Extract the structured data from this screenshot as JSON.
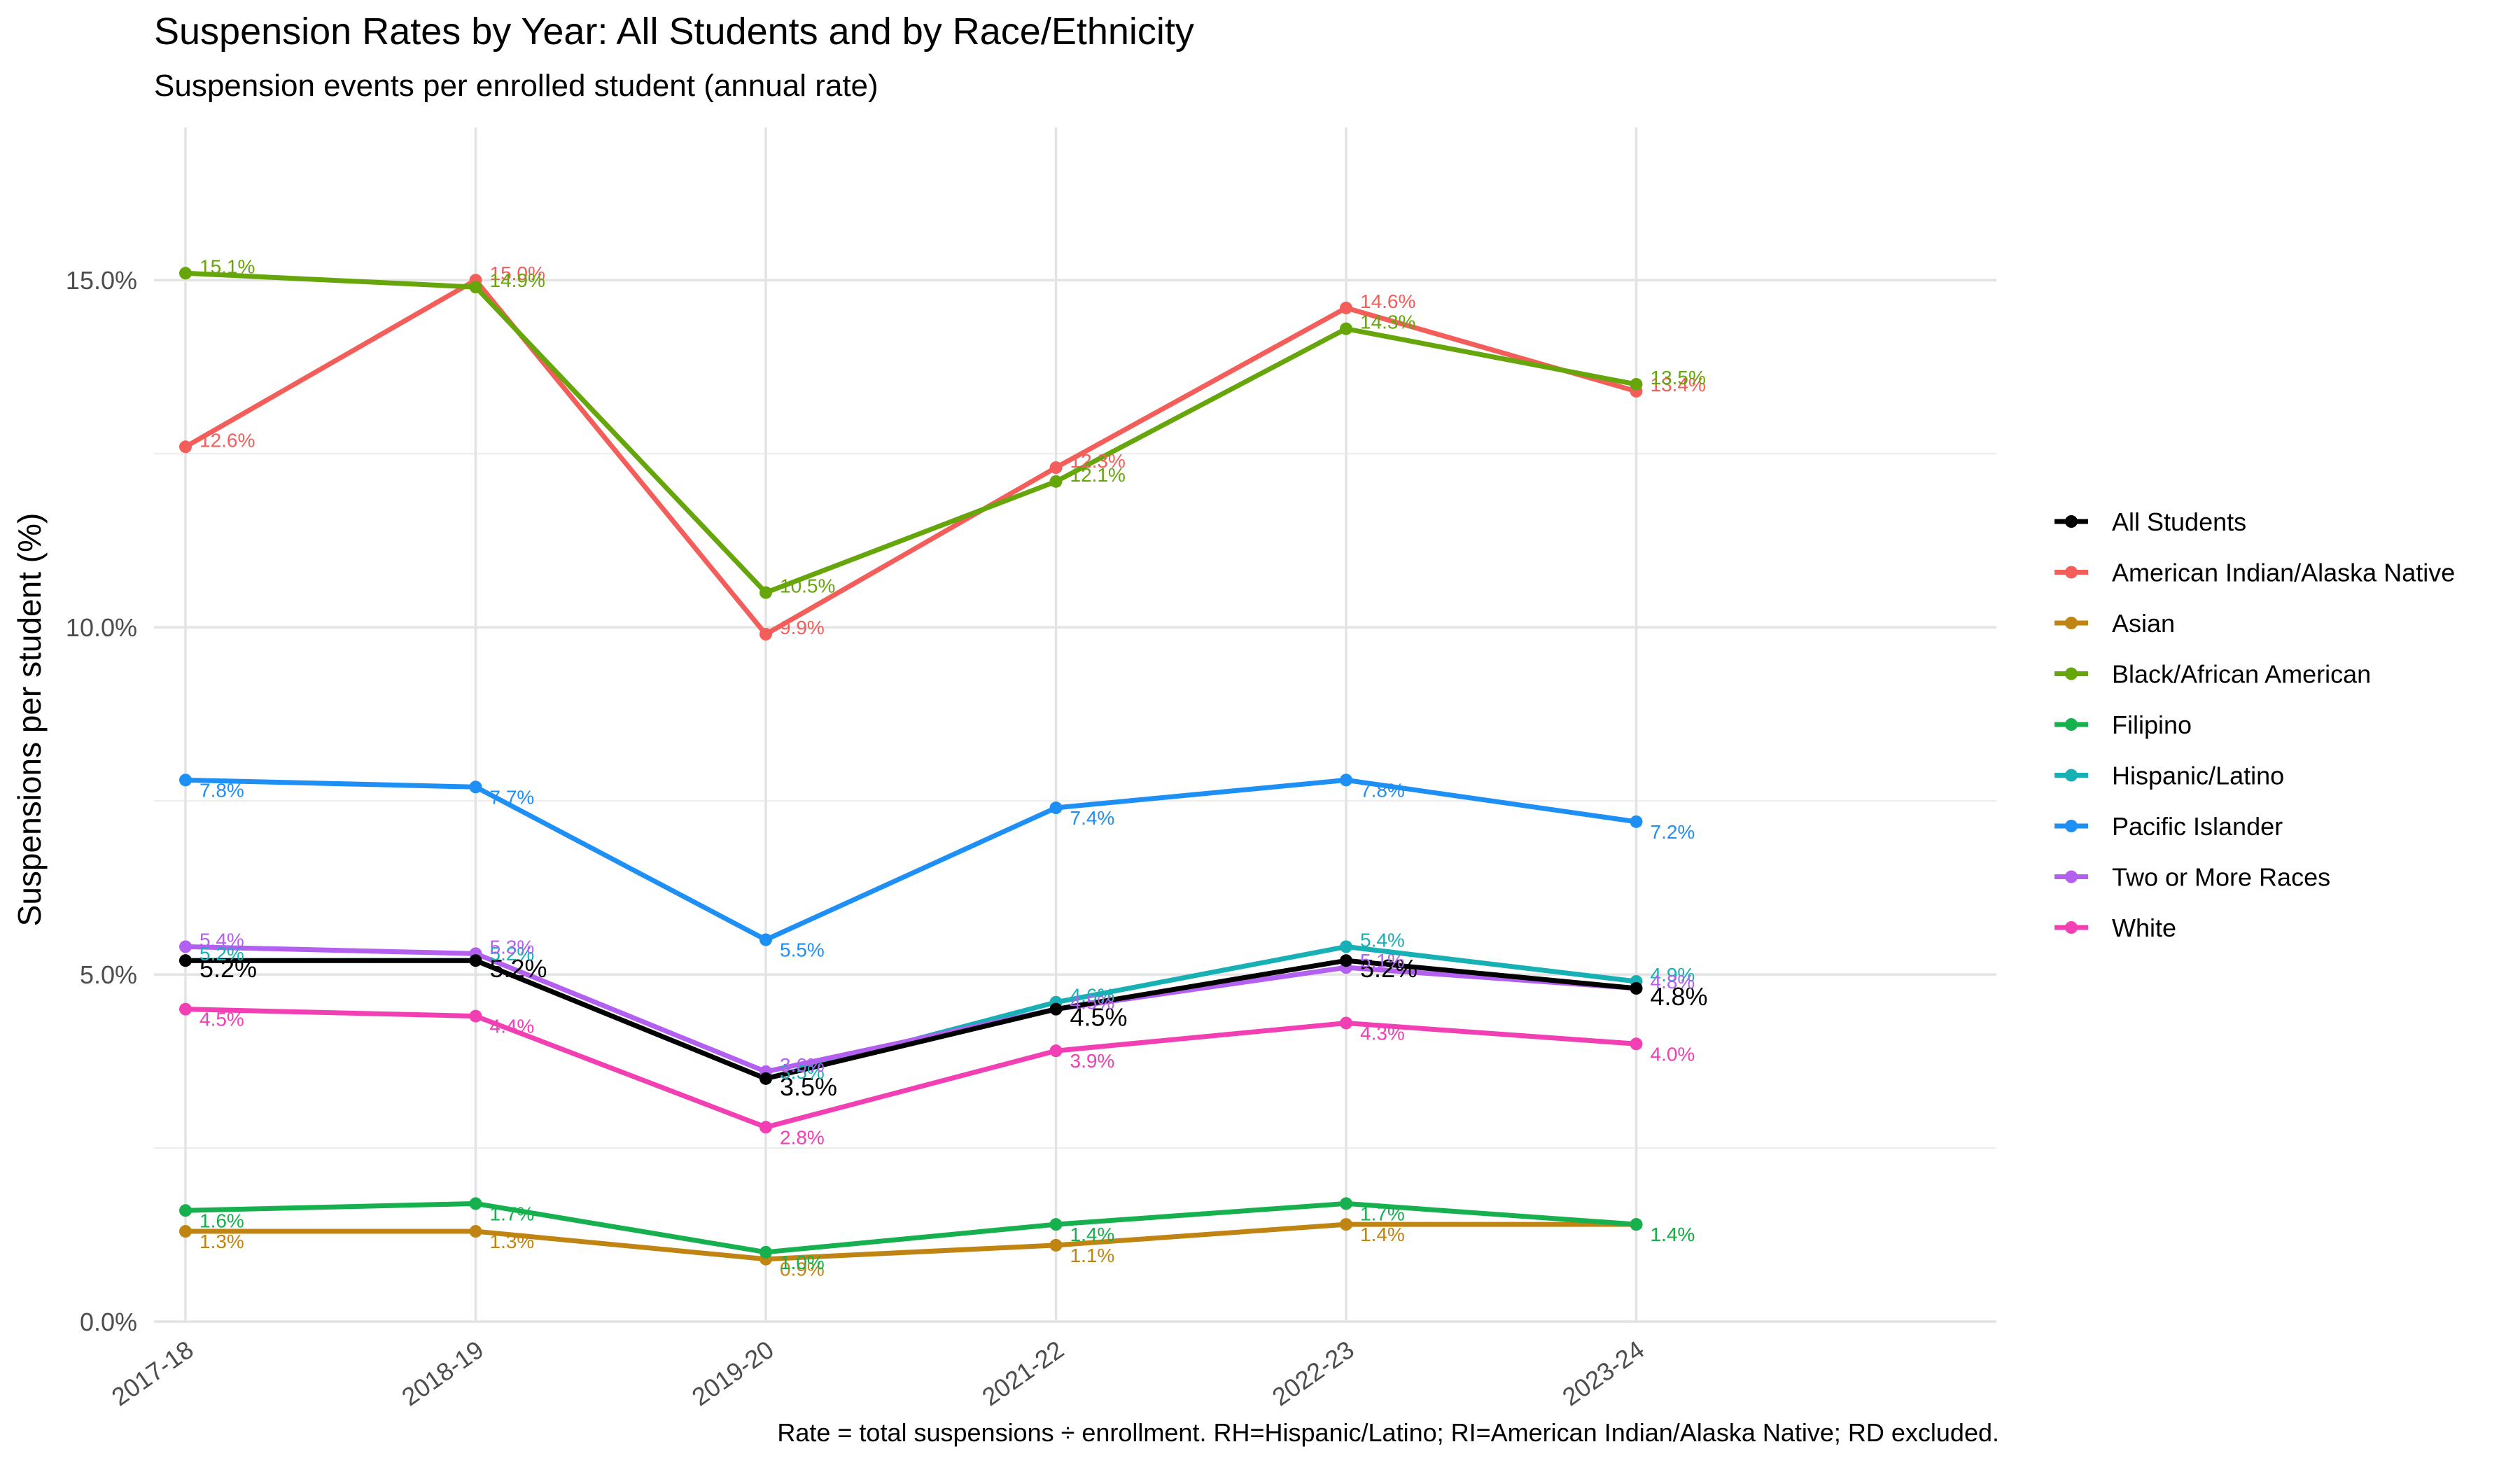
{
  "chart_data": {
    "type": "line",
    "title": "Suspension Rates by Year: All Students and by Race/Ethnicity",
    "subtitle": "Suspension events per enrolled student (annual rate)",
    "xlabel": "",
    "ylabel": "Suspensions per student (%)",
    "caption": "Rate = total suspensions ÷ enrollment. RH=Hispanic/Latino; RI=American Indian/Alaska Native; RD excluded.",
    "categories": [
      "2017-18",
      "2018-19",
      "2019-20",
      "2021-22",
      "2022-23",
      "2023-24"
    ],
    "ylim": [
      0,
      17.2
    ],
    "yticks": [
      0,
      5,
      10,
      15
    ],
    "ytick_labels": [
      "0.0%",
      "5.0%",
      "10.0%",
      "15.0%"
    ],
    "grid": true,
    "legend_position": "right",
    "series": [
      {
        "name": "All Students",
        "color": "#000000",
        "values": [
          5.2,
          5.2,
          3.5,
          4.5,
          5.2,
          4.8
        ]
      },
      {
        "name": "American Indian/Alaska Native",
        "color": "#F8766D",
        "values": [
          12.6,
          15.0,
          9.9,
          12.3,
          14.6,
          13.4
        ]
      },
      {
        "name": "Asian",
        "color": "#C49A00",
        "values": [
          1.3,
          1.3,
          0.9,
          1.1,
          1.4,
          1.4
        ]
      },
      {
        "name": "Black/African American",
        "color": "#53B400",
        "values": [
          15.1,
          14.9,
          10.5,
          12.1,
          14.3,
          13.5
        ]
      },
      {
        "name": "Filipino",
        "color": "#00C094",
        "values": [
          1.6,
          1.7,
          1.0,
          1.4,
          1.7,
          1.4
        ]
      },
      {
        "name": "Hispanic/Latino",
        "color": "#00B6EB",
        "values": [
          5.2,
          5.2,
          3.5,
          4.6,
          5.4,
          4.9
        ]
      },
      {
        "name": "Pacific Islander",
        "color": "#06A4FF",
        "values": [
          7.8,
          7.7,
          5.5,
          7.4,
          7.8,
          7.2
        ]
      },
      {
        "name": "Two or More Races",
        "color": "#A58AFF",
        "values": [
          5.4,
          5.3,
          3.6,
          4.5,
          5.1,
          4.8
        ]
      },
      {
        "name": "White",
        "color": "#FB61D7",
        "values": [
          4.5,
          4.4,
          2.8,
          3.9,
          4.3,
          4.0
        ]
      }
    ],
    "line_colors": {
      "All Students": "#000000",
      "American Indian/Alaska Native": "#F35E5A",
      "Asian": "#C08412",
      "Black/African American": "#66A60B",
      "Filipino": "#17B04F",
      "Hispanic/Latino": "#17B0B5",
      "Pacific Islander": "#1E90F5",
      "Two or More Races": "#B35FF0",
      "White": "#F23FB4"
    }
  }
}
